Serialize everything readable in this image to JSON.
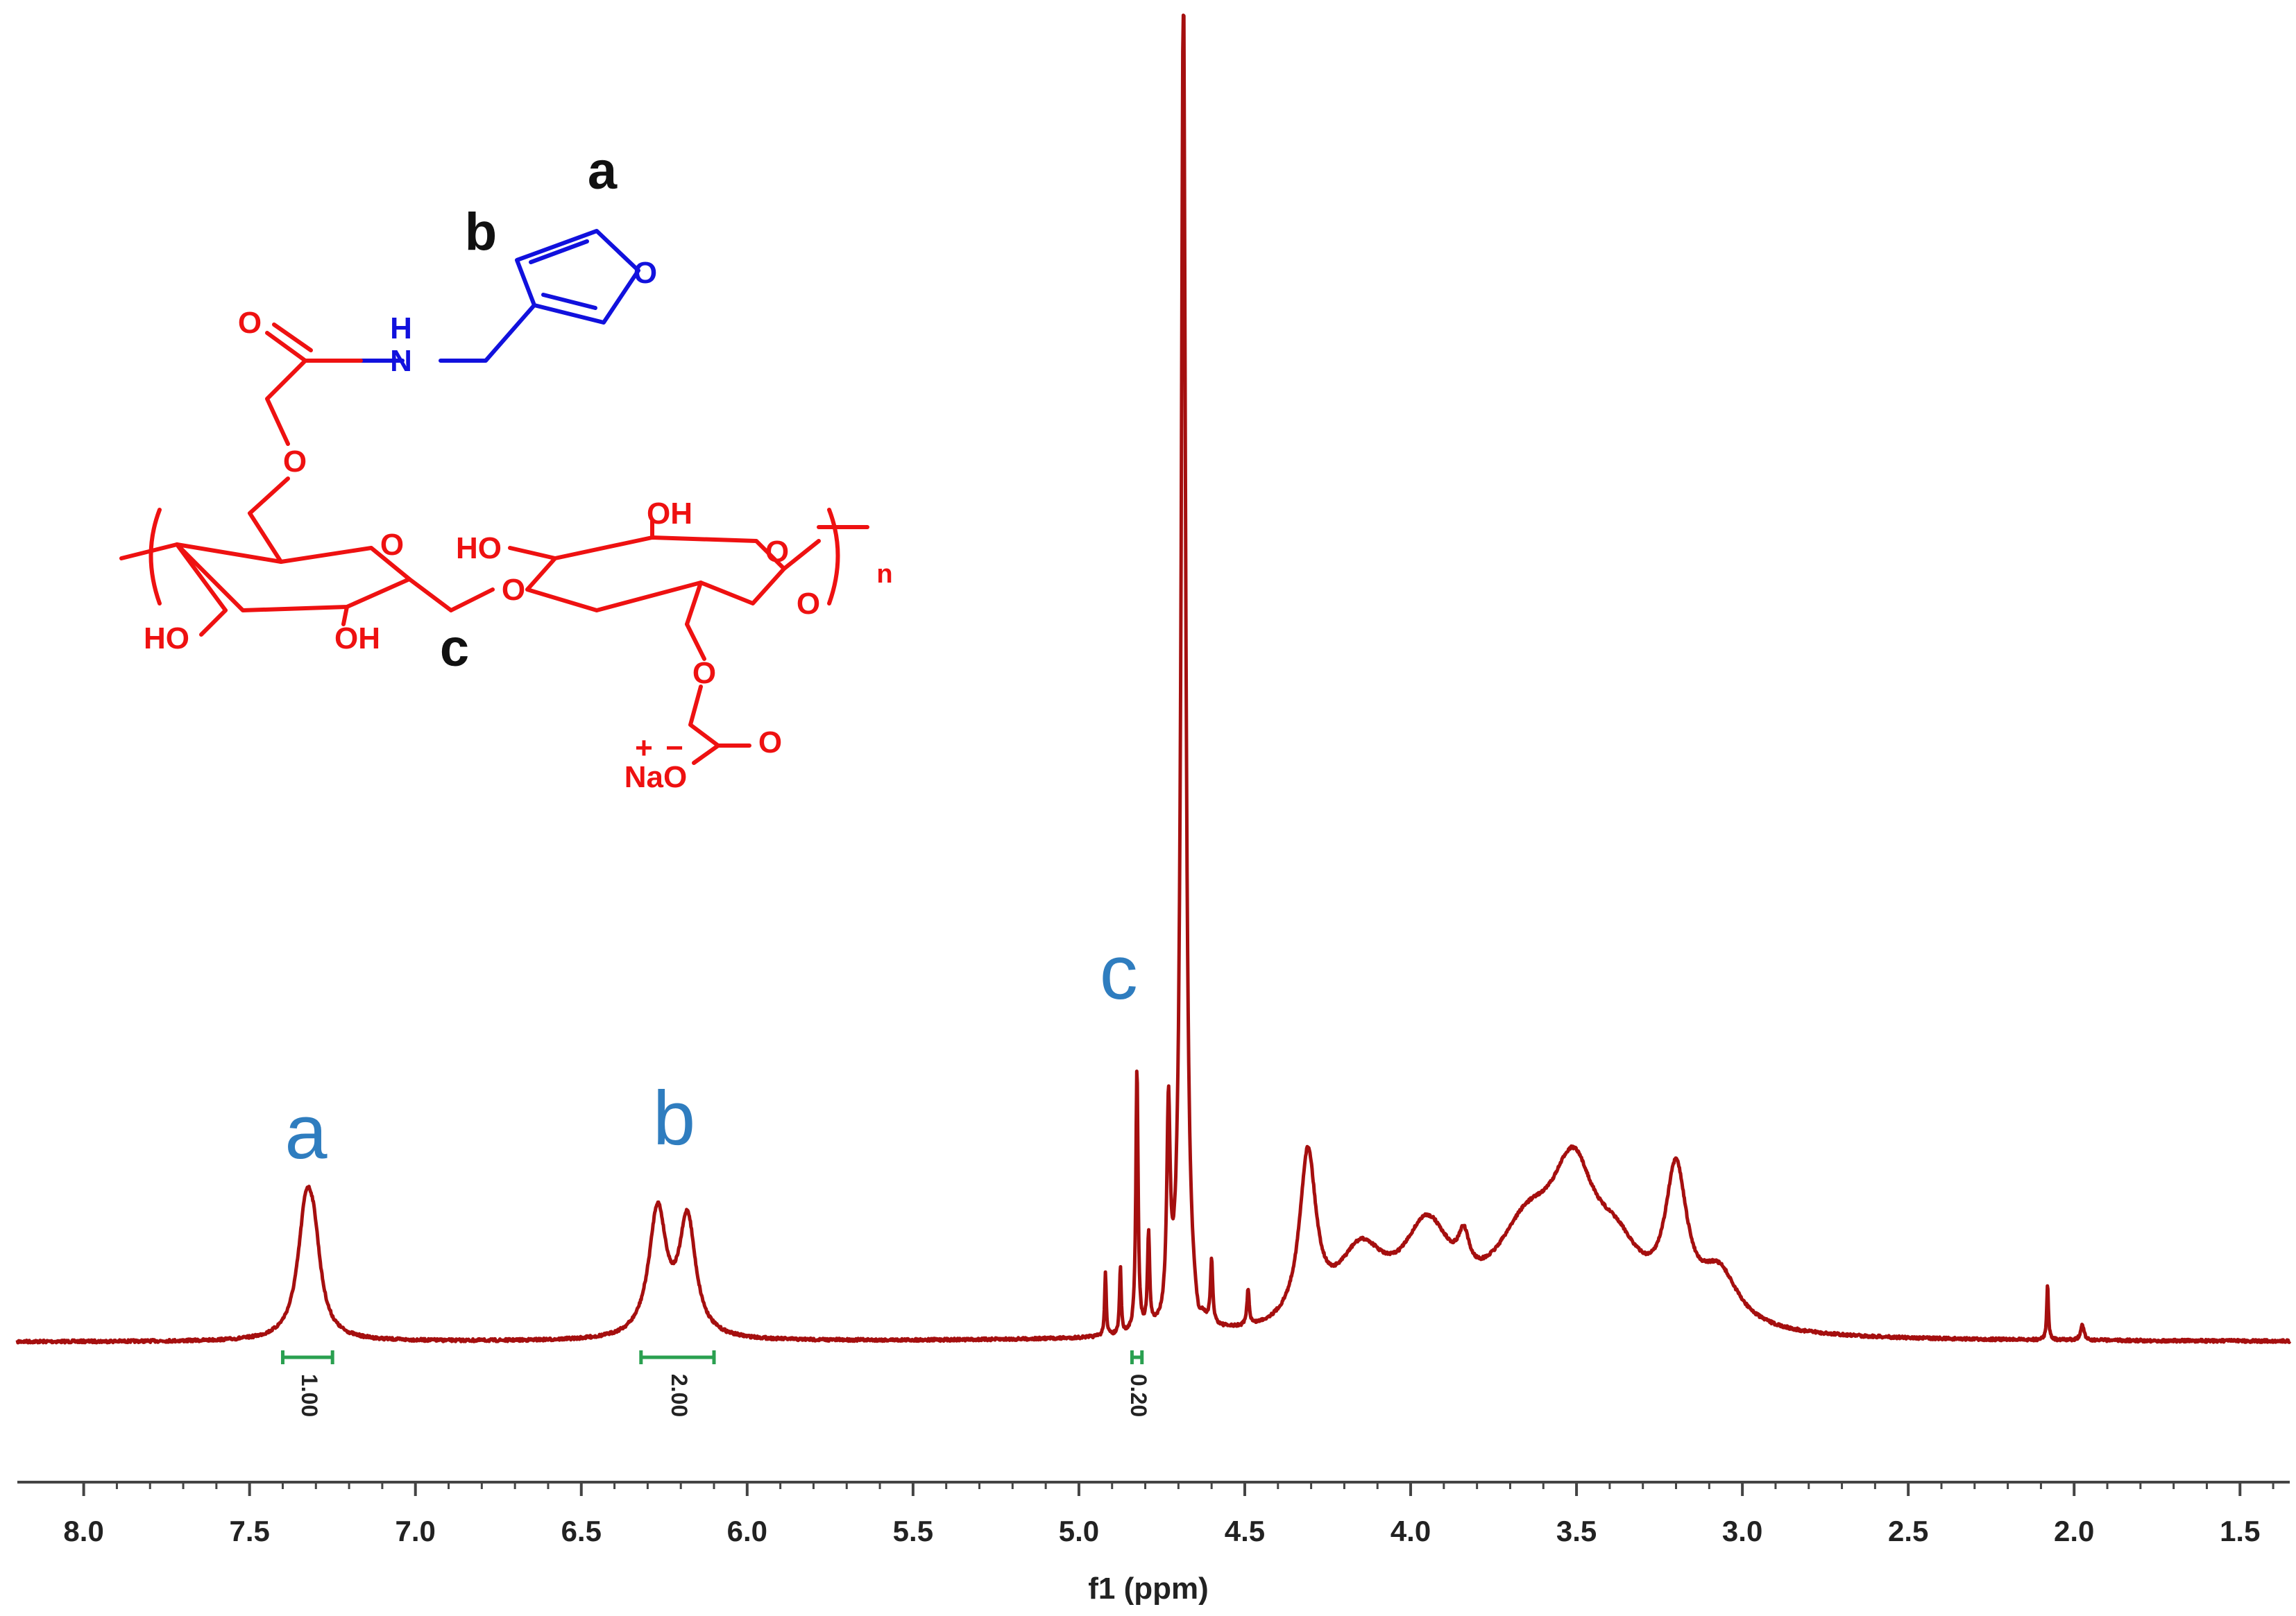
{
  "chart_data": {
    "type": "line",
    "title": "",
    "xlabel": "f1 (ppm)",
    "ylabel": "",
    "xlim": [
      8.2,
      1.35
    ],
    "x_reversed": true,
    "grid": false,
    "x_ticks": [
      "8.0",
      "7.5",
      "7.0",
      "6.5",
      "6.0",
      "5.5",
      "5.0",
      "4.5",
      "4.0",
      "3.5",
      "3.0",
      "2.5",
      "2.0",
      "1.5"
    ],
    "series": [
      {
        "color": "#a50f0f",
        "peaks": [
          {
            "x": 7.33,
            "height": 0.115,
            "width": 0.03
          },
          {
            "x": 7.305,
            "height": 0.06,
            "width": 0.025
          },
          {
            "x": 6.27,
            "height": 0.122,
            "width": 0.032
          },
          {
            "x": 6.18,
            "height": 0.112,
            "width": 0.03
          },
          {
            "x": 4.92,
            "height": 0.06,
            "width": 0.003
          },
          {
            "x": 4.875,
            "height": 0.065,
            "width": 0.003
          },
          {
            "x": 4.825,
            "height": 0.255,
            "width": 0.004
          },
          {
            "x": 4.79,
            "height": 0.09,
            "width": 0.004
          },
          {
            "x": 4.73,
            "height": 0.2,
            "width": 0.006
          },
          {
            "x": 4.685,
            "height": 1.3,
            "width": 0.008
          },
          {
            "x": 4.6,
            "height": 0.06,
            "width": 0.004
          },
          {
            "x": 4.49,
            "height": 0.035,
            "width": 0.004
          },
          {
            "x": 4.31,
            "height": 0.16,
            "width": 0.03
          },
          {
            "x": 4.15,
            "height": 0.07,
            "width": 0.09
          },
          {
            "x": 3.95,
            "height": 0.09,
            "width": 0.09
          },
          {
            "x": 3.84,
            "height": 0.035,
            "width": 0.02
          },
          {
            "x": 3.65,
            "height": 0.085,
            "width": 0.12
          },
          {
            "x": 3.51,
            "height": 0.12,
            "width": 0.08
          },
          {
            "x": 3.38,
            "height": 0.06,
            "width": 0.1
          },
          {
            "x": 3.2,
            "height": 0.135,
            "width": 0.04
          },
          {
            "x": 3.07,
            "height": 0.05,
            "width": 0.07
          },
          {
            "x": 2.08,
            "height": 0.055,
            "width": 0.003
          },
          {
            "x": 1.975,
            "height": 0.015,
            "width": 0.006
          }
        ]
      }
    ],
    "integrals": [
      {
        "label": "1.00",
        "from": 7.4,
        "to": 7.25
      },
      {
        "label": "2.00",
        "from": 6.32,
        "to": 6.1
      },
      {
        "label": "0.20",
        "from": 4.84,
        "to": 4.81
      }
    ],
    "annotations": [
      {
        "text": "a",
        "x": 7.33
      },
      {
        "text": "b",
        "x": 6.22
      },
      {
        "text": "c",
        "x": 4.88
      }
    ],
    "annotation_color": "#2f7dbf",
    "integral_color": "#2aa050"
  },
  "structure": {
    "labels": {
      "a": "a",
      "b": "b",
      "c": "c"
    },
    "atoms": {
      "o_carbonyl": "O",
      "nh_h": "H",
      "nh_n": "N",
      "o_furan": "O",
      "o_ether": "O",
      "o_ring1": "O",
      "o_glyco": "O",
      "o_ring2": "O",
      "o_ring2b": "O",
      "oh_ring1_left": "HO",
      "oh_ring1_mid": "OH",
      "ho_ring2": "HO",
      "oh_ring2_top": "OH",
      "o_ether2": "O",
      "o_carbox": "O",
      "na_o": "NaO",
      "charge_plus": "+",
      "charge_minus": "−",
      "subscript_n": "n"
    },
    "colors": {
      "polymer": "#ee1111",
      "furan": "#1111dd",
      "letters": "#111111"
    }
  }
}
